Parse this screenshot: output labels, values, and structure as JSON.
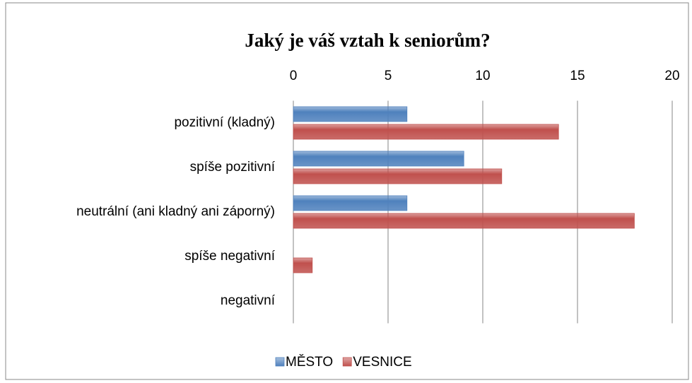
{
  "chart_data": {
    "type": "bar",
    "orientation": "horizontal",
    "title": "Jaký je váš vztah k seniorům?",
    "categories": [
      "pozitivní (kladný)",
      "spíše pozitivní",
      "neutrální (ani kladný ani záporný)",
      "spíše negativní",
      "negativní"
    ],
    "series": [
      {
        "name": "MĚSTO",
        "color": "#4f81bd",
        "values": [
          6,
          9,
          6,
          0,
          0
        ]
      },
      {
        "name": "VESNICE",
        "color": "#c0504d",
        "values": [
          14,
          11,
          18,
          1,
          0
        ]
      }
    ],
    "xlim": [
      0,
      20
    ],
    "xticks": [
      0,
      5,
      10,
      15,
      20
    ],
    "grid": true,
    "legend": "bottom"
  }
}
